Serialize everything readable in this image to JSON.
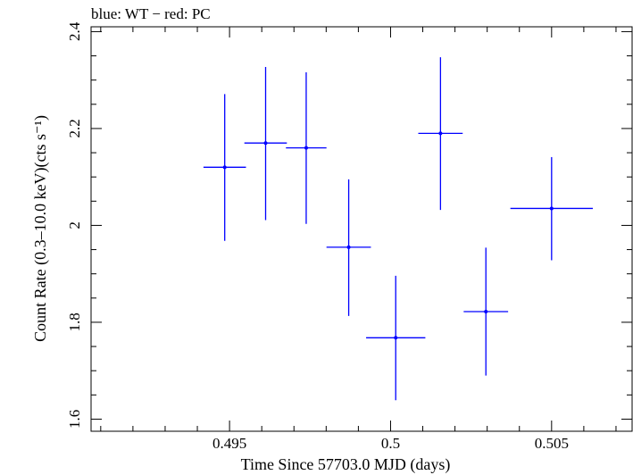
{
  "header": "blue: WT − red: PC",
  "chart_data": {
    "type": "scatter",
    "title": "",
    "xlabel": "Time Since 57703.0 MJD (days)",
    "ylabel": "Count Rate (0.3–10.0 keV)(cts s⁻¹)",
    "xlim": [
      0.4907,
      0.5075
    ],
    "ylim": [
      1.575,
      2.41
    ],
    "x_ticks": [
      0.495,
      0.5,
      0.505
    ],
    "x_tick_labels": [
      "0.495",
      "0.5",
      "0.505"
    ],
    "y_ticks": [
      1.6,
      1.8,
      2.0,
      2.2,
      2.4
    ],
    "y_tick_labels": [
      "1.6",
      "1.8",
      "2",
      "2.2",
      "2.4"
    ],
    "grid": false,
    "series": [
      {
        "color": "#0000ff",
        "points": [
          {
            "x": 0.49485,
            "xerr": 0.00066,
            "y": 2.12,
            "yerr_lo": 0.152,
            "yerr_hi": 0.151
          },
          {
            "x": 0.49612,
            "xerr": 0.00066,
            "y": 2.17,
            "yerr_lo": 0.159,
            "yerr_hi": 0.157
          },
          {
            "x": 0.49738,
            "xerr": 0.00063,
            "y": 2.16,
            "yerr_lo": 0.157,
            "yerr_hi": 0.156
          },
          {
            "x": 0.4987,
            "xerr": 0.00069,
            "y": 1.955,
            "yerr_lo": 0.142,
            "yerr_hi": 0.14
          },
          {
            "x": 0.50016,
            "xerr": 0.00092,
            "y": 1.768,
            "yerr_lo": 0.129,
            "yerr_hi": 0.128
          },
          {
            "x": 0.50155,
            "xerr": 0.00069,
            "y": 2.19,
            "yerr_lo": 0.158,
            "yerr_hi": 0.157
          },
          {
            "x": 0.50296,
            "xerr": 0.00069,
            "y": 1.822,
            "yerr_lo": 0.132,
            "yerr_hi": 0.132
          },
          {
            "x": 0.505,
            "xerr": 0.00128,
            "y": 2.035,
            "yerr_lo": 0.107,
            "yerr_hi": 0.106
          }
        ]
      }
    ]
  }
}
